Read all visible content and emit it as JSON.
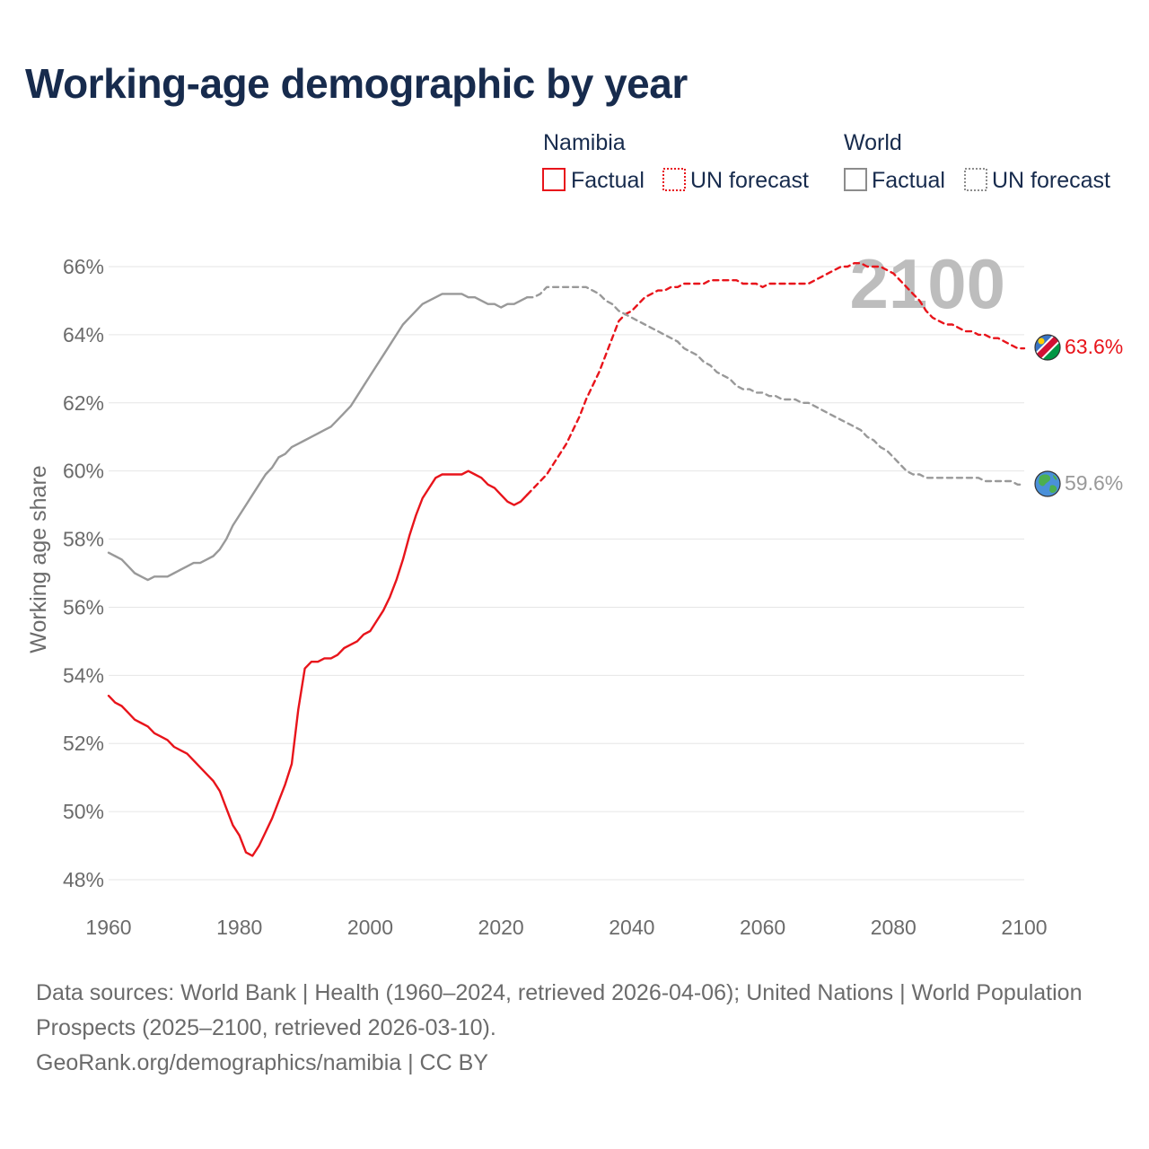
{
  "title": "Working-age demographic by year",
  "legend": {
    "groups": [
      {
        "name": "Namibia",
        "color": "#e8141b",
        "items": [
          "Factual",
          "UN forecast"
        ]
      },
      {
        "name": "World",
        "color": "#8c8c8c",
        "items": [
          "Factual",
          "UN forecast"
        ]
      }
    ]
  },
  "year_label": "2100",
  "end_labels": {
    "namibia": "63.6%",
    "world": "59.6%"
  },
  "footer": {
    "sources": "Data sources: World Bank | Health (1960–2024, retrieved 2026-04-06); United Nations | World Population Prospects (2025–2100, retrieved 2026-03-10).",
    "credit": "GeoRank.org/demographics/namibia | CC BY"
  },
  "colors": {
    "namibia": "#e8141b",
    "world": "#999999",
    "title": "#172b4d",
    "axis_text": "#6b6b6b",
    "grid": "#e6e6e6"
  },
  "icons": {
    "namibia": "namibia-flag-icon",
    "world": "globe-icon"
  },
  "chart_data": {
    "type": "line",
    "ylabel": "Working age share",
    "xlabel": "",
    "xlim": [
      1960,
      2100
    ],
    "ylim": [
      47.5,
      67
    ],
    "x_ticks": [
      1960,
      1980,
      2000,
      2020,
      2040,
      2060,
      2080,
      2100
    ],
    "y_ticks": [
      48,
      50,
      52,
      54,
      56,
      58,
      60,
      62,
      64,
      66
    ],
    "y_tick_labels": [
      "48%",
      "50%",
      "52%",
      "54%",
      "56%",
      "58%",
      "60%",
      "62%",
      "64%",
      "66%"
    ],
    "grid": true,
    "series": [
      {
        "name": "Namibia",
        "segment": "Factual",
        "style": "solid",
        "color": "#e8141b",
        "points": [
          [
            1960,
            53.4
          ],
          [
            1961,
            53.2
          ],
          [
            1962,
            53.1
          ],
          [
            1963,
            52.9
          ],
          [
            1964,
            52.7
          ],
          [
            1965,
            52.6
          ],
          [
            1966,
            52.5
          ],
          [
            1967,
            52.3
          ],
          [
            1968,
            52.2
          ],
          [
            1969,
            52.1
          ],
          [
            1970,
            51.9
          ],
          [
            1971,
            51.8
          ],
          [
            1972,
            51.7
          ],
          [
            1973,
            51.5
          ],
          [
            1974,
            51.3
          ],
          [
            1975,
            51.1
          ],
          [
            1976,
            50.9
          ],
          [
            1977,
            50.6
          ],
          [
            1978,
            50.1
          ],
          [
            1979,
            49.6
          ],
          [
            1980,
            49.3
          ],
          [
            1981,
            48.8
          ],
          [
            1982,
            48.7
          ],
          [
            1983,
            49.0
          ],
          [
            1984,
            49.4
          ],
          [
            1985,
            49.8
          ],
          [
            1986,
            50.3
          ],
          [
            1987,
            50.8
          ],
          [
            1988,
            51.4
          ],
          [
            1989,
            53.0
          ],
          [
            1990,
            54.2
          ],
          [
            1991,
            54.4
          ],
          [
            1992,
            54.4
          ],
          [
            1993,
            54.5
          ],
          [
            1994,
            54.5
          ],
          [
            1995,
            54.6
          ],
          [
            1996,
            54.8
          ],
          [
            1997,
            54.9
          ],
          [
            1998,
            55.0
          ],
          [
            1999,
            55.2
          ],
          [
            2000,
            55.3
          ],
          [
            2001,
            55.6
          ],
          [
            2002,
            55.9
          ],
          [
            2003,
            56.3
          ],
          [
            2004,
            56.8
          ],
          [
            2005,
            57.4
          ],
          [
            2006,
            58.1
          ],
          [
            2007,
            58.7
          ],
          [
            2008,
            59.2
          ],
          [
            2009,
            59.5
          ],
          [
            2010,
            59.8
          ],
          [
            2011,
            59.9
          ],
          [
            2012,
            59.9
          ],
          [
            2013,
            59.9
          ],
          [
            2014,
            59.9
          ],
          [
            2015,
            60.0
          ],
          [
            2016,
            59.9
          ],
          [
            2017,
            59.8
          ],
          [
            2018,
            59.6
          ],
          [
            2019,
            59.5
          ],
          [
            2020,
            59.3
          ],
          [
            2021,
            59.1
          ],
          [
            2022,
            59.0
          ],
          [
            2023,
            59.1
          ],
          [
            2024,
            59.3
          ]
        ]
      },
      {
        "name": "Namibia",
        "segment": "UN forecast",
        "style": "dashed",
        "color": "#e8141b",
        "points": [
          [
            2024,
            59.3
          ],
          [
            2025,
            59.5
          ],
          [
            2026,
            59.7
          ],
          [
            2027,
            59.9
          ],
          [
            2028,
            60.2
          ],
          [
            2029,
            60.5
          ],
          [
            2030,
            60.8
          ],
          [
            2031,
            61.2
          ],
          [
            2032,
            61.6
          ],
          [
            2033,
            62.1
          ],
          [
            2034,
            62.5
          ],
          [
            2035,
            62.9
          ],
          [
            2036,
            63.4
          ],
          [
            2037,
            63.9
          ],
          [
            2038,
            64.4
          ],
          [
            2039,
            64.6
          ],
          [
            2040,
            64.7
          ],
          [
            2041,
            64.9
          ],
          [
            2042,
            65.1
          ],
          [
            2043,
            65.2
          ],
          [
            2044,
            65.3
          ],
          [
            2045,
            65.3
          ],
          [
            2046,
            65.4
          ],
          [
            2047,
            65.4
          ],
          [
            2048,
            65.5
          ],
          [
            2050,
            65.5
          ],
          [
            2051,
            65.5
          ],
          [
            2052,
            65.6
          ],
          [
            2056,
            65.6
          ],
          [
            2057,
            65.5
          ],
          [
            2059,
            65.5
          ],
          [
            2060,
            65.4
          ],
          [
            2061,
            65.5
          ],
          [
            2067,
            65.5
          ],
          [
            2068,
            65.6
          ],
          [
            2069,
            65.7
          ],
          [
            2070,
            65.8
          ],
          [
            2071,
            65.9
          ],
          [
            2072,
            66.0
          ],
          [
            2073,
            66.0
          ],
          [
            2074,
            66.1
          ],
          [
            2075,
            66.1
          ],
          [
            2076,
            66.0
          ],
          [
            2078,
            66.0
          ],
          [
            2079,
            65.9
          ],
          [
            2080,
            65.8
          ],
          [
            2081,
            65.6
          ],
          [
            2082,
            65.4
          ],
          [
            2083,
            65.2
          ],
          [
            2084,
            65.0
          ],
          [
            2085,
            64.7
          ],
          [
            2086,
            64.5
          ],
          [
            2087,
            64.4
          ],
          [
            2088,
            64.3
          ],
          [
            2089,
            64.3
          ],
          [
            2090,
            64.2
          ],
          [
            2091,
            64.1
          ],
          [
            2092,
            64.1
          ],
          [
            2093,
            64.0
          ],
          [
            2094,
            64.0
          ],
          [
            2095,
            63.9
          ],
          [
            2096,
            63.9
          ],
          [
            2097,
            63.8
          ],
          [
            2098,
            63.7
          ],
          [
            2099,
            63.6
          ],
          [
            2100,
            63.6
          ]
        ]
      },
      {
        "name": "World",
        "segment": "Factual",
        "style": "solid",
        "color": "#999999",
        "points": [
          [
            1960,
            57.6
          ],
          [
            1961,
            57.5
          ],
          [
            1962,
            57.4
          ],
          [
            1963,
            57.2
          ],
          [
            1964,
            57.0
          ],
          [
            1965,
            56.9
          ],
          [
            1966,
            56.8
          ],
          [
            1967,
            56.9
          ],
          [
            1968,
            56.9
          ],
          [
            1969,
            56.9
          ],
          [
            1970,
            57.0
          ],
          [
            1971,
            57.1
          ],
          [
            1972,
            57.2
          ],
          [
            1973,
            57.3
          ],
          [
            1974,
            57.3
          ],
          [
            1975,
            57.4
          ],
          [
            1976,
            57.5
          ],
          [
            1977,
            57.7
          ],
          [
            1978,
            58.0
          ],
          [
            1979,
            58.4
          ],
          [
            1980,
            58.7
          ],
          [
            1981,
            59.0
          ],
          [
            1982,
            59.3
          ],
          [
            1983,
            59.6
          ],
          [
            1984,
            59.9
          ],
          [
            1985,
            60.1
          ],
          [
            1986,
            60.4
          ],
          [
            1987,
            60.5
          ],
          [
            1988,
            60.7
          ],
          [
            1989,
            60.8
          ],
          [
            1990,
            60.9
          ],
          [
            1991,
            61.0
          ],
          [
            1992,
            61.1
          ],
          [
            1993,
            61.2
          ],
          [
            1994,
            61.3
          ],
          [
            1995,
            61.5
          ],
          [
            1996,
            61.7
          ],
          [
            1997,
            61.9
          ],
          [
            1998,
            62.2
          ],
          [
            1999,
            62.5
          ],
          [
            2000,
            62.8
          ],
          [
            2001,
            63.1
          ],
          [
            2002,
            63.4
          ],
          [
            2003,
            63.7
          ],
          [
            2004,
            64.0
          ],
          [
            2005,
            64.3
          ],
          [
            2006,
            64.5
          ],
          [
            2007,
            64.7
          ],
          [
            2008,
            64.9
          ],
          [
            2009,
            65.0
          ],
          [
            2010,
            65.1
          ],
          [
            2011,
            65.2
          ],
          [
            2012,
            65.2
          ],
          [
            2013,
            65.2
          ],
          [
            2014,
            65.2
          ],
          [
            2015,
            65.1
          ],
          [
            2016,
            65.1
          ],
          [
            2017,
            65.0
          ],
          [
            2018,
            64.9
          ],
          [
            2019,
            64.9
          ],
          [
            2020,
            64.8
          ],
          [
            2021,
            64.9
          ],
          [
            2022,
            64.9
          ],
          [
            2023,
            65.0
          ],
          [
            2024,
            65.1
          ]
        ]
      },
      {
        "name": "World",
        "segment": "UN forecast",
        "style": "dashed",
        "color": "#999999",
        "points": [
          [
            2024,
            65.1
          ],
          [
            2025,
            65.1
          ],
          [
            2026,
            65.2
          ],
          [
            2027,
            65.4
          ],
          [
            2033,
            65.4
          ],
          [
            2034,
            65.3
          ],
          [
            2035,
            65.2
          ],
          [
            2036,
            65.0
          ],
          [
            2037,
            64.9
          ],
          [
            2038,
            64.7
          ],
          [
            2039,
            64.6
          ],
          [
            2040,
            64.5
          ],
          [
            2041,
            64.4
          ],
          [
            2042,
            64.3
          ],
          [
            2043,
            64.2
          ],
          [
            2044,
            64.1
          ],
          [
            2045,
            64.0
          ],
          [
            2046,
            63.9
          ],
          [
            2047,
            63.8
          ],
          [
            2048,
            63.6
          ],
          [
            2049,
            63.5
          ],
          [
            2050,
            63.4
          ],
          [
            2051,
            63.2
          ],
          [
            2052,
            63.1
          ],
          [
            2053,
            62.9
          ],
          [
            2054,
            62.8
          ],
          [
            2055,
            62.7
          ],
          [
            2056,
            62.5
          ],
          [
            2057,
            62.4
          ],
          [
            2058,
            62.4
          ],
          [
            2059,
            62.3
          ],
          [
            2060,
            62.3
          ],
          [
            2061,
            62.2
          ],
          [
            2062,
            62.2
          ],
          [
            2063,
            62.1
          ],
          [
            2064,
            62.1
          ],
          [
            2065,
            62.1
          ],
          [
            2066,
            62.0
          ],
          [
            2067,
            62.0
          ],
          [
            2068,
            61.9
          ],
          [
            2069,
            61.8
          ],
          [
            2070,
            61.7
          ],
          [
            2071,
            61.6
          ],
          [
            2072,
            61.5
          ],
          [
            2073,
            61.4
          ],
          [
            2074,
            61.3
          ],
          [
            2075,
            61.2
          ],
          [
            2076,
            61.0
          ],
          [
            2077,
            60.9
          ],
          [
            2078,
            60.7
          ],
          [
            2079,
            60.6
          ],
          [
            2080,
            60.4
          ],
          [
            2081,
            60.2
          ],
          [
            2082,
            60.0
          ],
          [
            2083,
            59.9
          ],
          [
            2084,
            59.9
          ],
          [
            2085,
            59.8
          ],
          [
            2093,
            59.8
          ],
          [
            2094,
            59.7
          ],
          [
            2098,
            59.7
          ],
          [
            2099,
            59.6
          ],
          [
            2100,
            59.6
          ]
        ]
      }
    ]
  }
}
